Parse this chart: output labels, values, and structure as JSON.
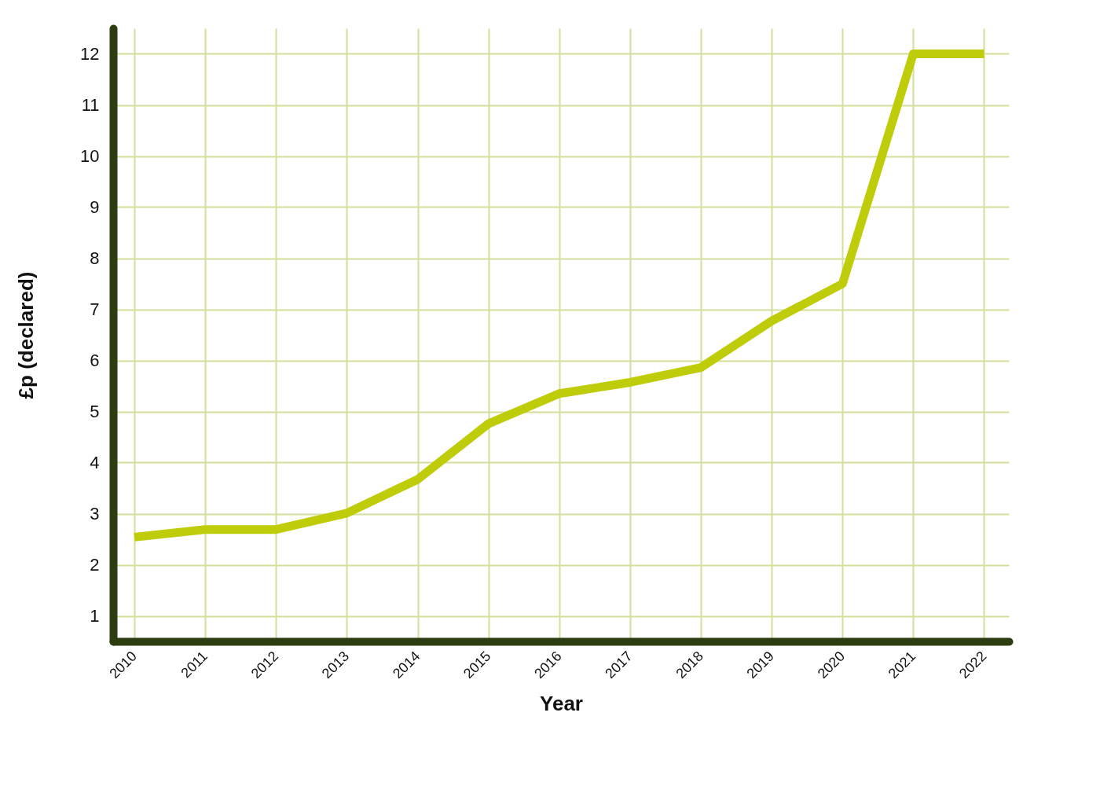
{
  "chart_data": {
    "type": "line",
    "xlabel": "Year",
    "ylabel": "£p (declared)",
    "x": [
      2010,
      2011,
      2012,
      2013,
      2014,
      2015,
      2016,
      2017,
      2018,
      2019,
      2020,
      2021,
      2022
    ],
    "series": [
      {
        "color": "#bfcc0a",
        "values": [
          2.54,
          2.69,
          2.69,
          3.01,
          3.67,
          4.76,
          5.35,
          5.57,
          5.86,
          6.77,
          7.5,
          12,
          12
        ]
      }
    ],
    "xlim": [
      2009.7,
      2022.35
    ],
    "xticks": [
      2010,
      2011,
      2012,
      2013,
      2014,
      2015,
      2016,
      2017,
      2018,
      2019,
      2020,
      2021,
      2022
    ],
    "ylim": [
      0.5,
      12.5
    ],
    "yticks": [
      1,
      2,
      3,
      4,
      5,
      6,
      7,
      8,
      9,
      10,
      11,
      12
    ],
    "grid": true,
    "marker": "none",
    "line_style": "solid"
  }
}
